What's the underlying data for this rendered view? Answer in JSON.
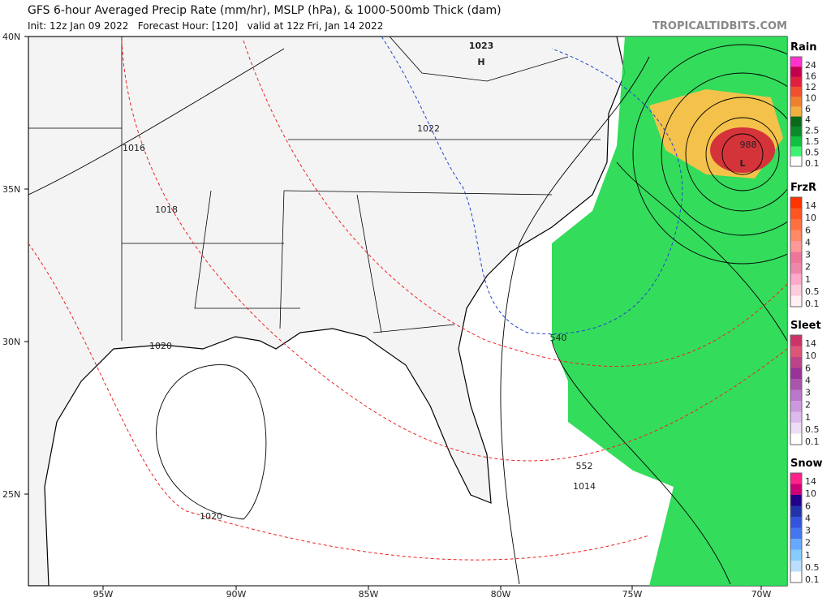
{
  "header": {
    "title": "GFS 6-hour Averaged Precip Rate (mm/hr), MSLP (hPa), & 1000-500mb Thick (dam)",
    "subtitle": "Init: 12z Jan 09 2022   Forecast Hour: [120]   valid at 12z Fri, Jan 14 2022",
    "site": "TROPICALTIDBITS.COM"
  },
  "map": {
    "lat_labels": [
      "40N",
      "35N",
      "30N",
      "25N"
    ],
    "lon_labels": [
      "95W",
      "90W",
      "85W",
      "80W",
      "75W",
      "70W"
    ],
    "labels": [
      "1023",
      "H",
      "1022",
      "1016",
      "1018",
      "1020",
      "1020",
      "1014",
      "552",
      "540",
      "988",
      "L"
    ]
  },
  "legends": [
    {
      "title": "Rain",
      "labels": [
        "24",
        "16",
        "12",
        "10",
        "6",
        "4",
        "2.5",
        "1.5",
        "0.5",
        "0.1"
      ]
    },
    {
      "title": "FrzR",
      "labels": [
        "14",
        "10",
        "6",
        "4",
        "3",
        "2",
        "1",
        "0.5",
        "0.1"
      ]
    },
    {
      "title": "Sleet",
      "labels": [
        "14",
        "10",
        "6",
        "4",
        "3",
        "2",
        "1",
        "0.5",
        "0.1"
      ]
    },
    {
      "title": "Snow",
      "labels": [
        "14",
        "10",
        "6",
        "4",
        "3",
        "2",
        "1",
        "0.5",
        "0.1"
      ]
    }
  ]
}
